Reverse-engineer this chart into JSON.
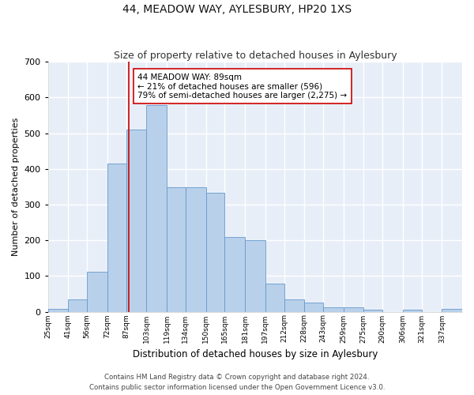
{
  "title": "44, MEADOW WAY, AYLESBURY, HP20 1XS",
  "subtitle": "Size of property relative to detached houses in Aylesbury",
  "xlabel": "Distribution of detached houses by size in Aylesbury",
  "ylabel": "Number of detached properties",
  "bin_labels": [
    "25sqm",
    "41sqm",
    "56sqm",
    "72sqm",
    "87sqm",
    "103sqm",
    "119sqm",
    "134sqm",
    "150sqm",
    "165sqm",
    "181sqm",
    "197sqm",
    "212sqm",
    "228sqm",
    "243sqm",
    "259sqm",
    "275sqm",
    "290sqm",
    "306sqm",
    "321sqm",
    "337sqm"
  ],
  "bin_edges": [
    25,
    41,
    56,
    72,
    87,
    103,
    119,
    134,
    150,
    165,
    181,
    197,
    212,
    228,
    243,
    259,
    275,
    290,
    306,
    321,
    337,
    353
  ],
  "bar_heights": [
    8,
    35,
    112,
    415,
    510,
    578,
    348,
    348,
    333,
    210,
    200,
    78,
    35,
    25,
    13,
    13,
    5,
    0,
    5,
    0,
    8
  ],
  "bar_color": "#b8d0ea",
  "bar_edge_color": "#6699cc",
  "property_size": 89,
  "vline_color": "#cc0000",
  "annotation_text": "44 MEADOW WAY: 89sqm\n← 21% of detached houses are smaller (596)\n79% of semi-detached houses are larger (2,275) →",
  "annotation_box_color": "#ffffff",
  "annotation_box_edge": "#cc0000",
  "ylim": [
    0,
    700
  ],
  "yticks": [
    0,
    100,
    200,
    300,
    400,
    500,
    600,
    700
  ],
  "background_color": "#e8eef8",
  "fig_background": "#ffffff",
  "grid_color": "#ffffff",
  "footer_line1": "Contains HM Land Registry data © Crown copyright and database right 2024.",
  "footer_line2": "Contains public sector information licensed under the Open Government Licence v3.0."
}
